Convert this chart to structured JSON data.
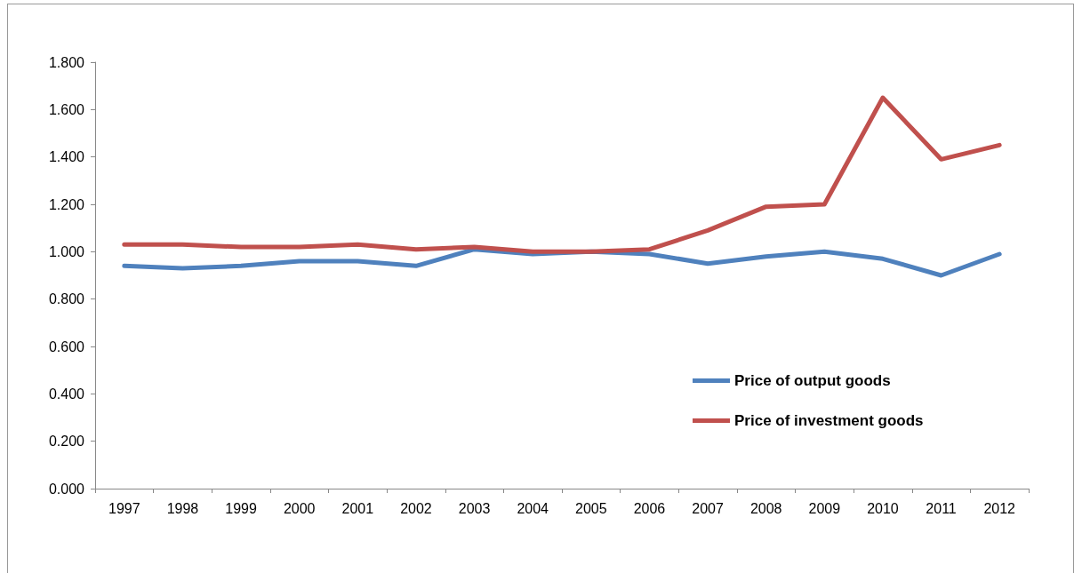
{
  "chart_data": {
    "type": "line",
    "categories": [
      "1997",
      "1998",
      "1999",
      "2000",
      "2001",
      "2002",
      "2003",
      "2004",
      "2005",
      "2006",
      "2007",
      "2008",
      "2009",
      "2010",
      "2011",
      "2012"
    ],
    "series": [
      {
        "name": "Price of output goods",
        "color": "#4f81bd",
        "values": [
          0.94,
          0.93,
          0.94,
          0.96,
          0.96,
          0.94,
          1.01,
          0.99,
          1.0,
          0.99,
          0.95,
          0.98,
          1.0,
          0.97,
          0.9,
          0.99
        ]
      },
      {
        "name": "Price of investment goods",
        "color": "#c0504d",
        "values": [
          1.03,
          1.03,
          1.02,
          1.02,
          1.03,
          1.01,
          1.02,
          1.0,
          1.0,
          1.01,
          1.09,
          1.19,
          1.2,
          1.65,
          1.39,
          1.45
        ]
      }
    ],
    "ylim": [
      0,
      1.8
    ],
    "yticks": [
      {
        "value": 0,
        "label": "0.000"
      },
      {
        "value": 0.2,
        "label": "0.200"
      },
      {
        "value": 0.4,
        "label": "0.400"
      },
      {
        "value": 0.6,
        "label": "0.600"
      },
      {
        "value": 0.8,
        "label": "0.800"
      },
      {
        "value": 1,
        "label": "1.000"
      },
      {
        "value": 1.2,
        "label": "1.200"
      },
      {
        "value": 1.4,
        "label": "1.400"
      },
      {
        "value": 1.6,
        "label": "1.600"
      },
      {
        "value": 1.8,
        "label": "1.800"
      }
    ],
    "grid": false,
    "legend": "right",
    "marker": "none",
    "line_style": "solid"
  }
}
